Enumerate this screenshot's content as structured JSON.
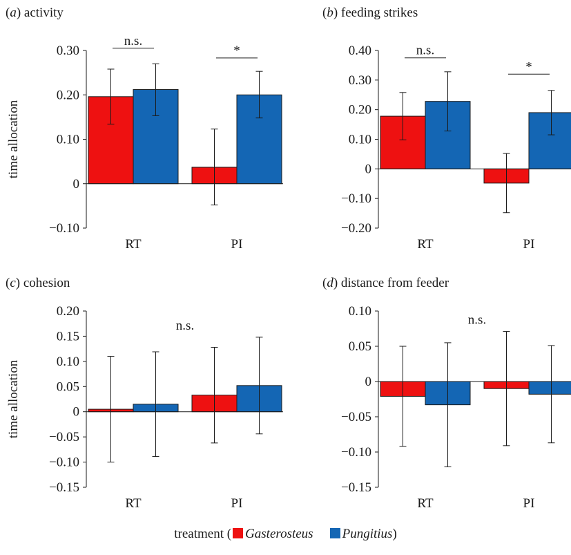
{
  "colors": {
    "gasterosteus": "#ee1111",
    "pungitius": "#1466b4",
    "axis": "#1a1a1a"
  },
  "legend": {
    "prefix": "treatment (",
    "series": [
      "Gasterosteus",
      "Pungitius"
    ],
    "suffix": ")"
  },
  "chart_data": [
    {
      "type": "bar",
      "panel_letter": "a",
      "title": "activity",
      "ylabel": "time allocation",
      "categories": [
        "RT",
        "PI"
      ],
      "ylim": [
        -0.1,
        0.3
      ],
      "yticks": [
        -0.1,
        0,
        0.1,
        0.2,
        0.3
      ],
      "ytick_labels": [
        "−0.10",
        "0",
        "0.10",
        "0.20",
        "0.30"
      ],
      "series": [
        {
          "name": "Gasterosteus",
          "values": [
            0.196,
            0.037
          ],
          "err_low": [
            0.134,
            -0.048
          ],
          "err_high": [
            0.258,
            0.123
          ]
        },
        {
          "name": "Pungitius",
          "values": [
            0.212,
            0.2
          ],
          "err_low": [
            0.153,
            0.148
          ],
          "err_high": [
            0.27,
            0.253
          ]
        }
      ],
      "annotations": [
        {
          "text": "n.s.",
          "category": 0,
          "bracket": true,
          "y": 0.305
        },
        {
          "text": "*",
          "category": 1,
          "bracket": true,
          "y": 0.283
        }
      ]
    },
    {
      "type": "bar",
      "panel_letter": "b",
      "title": "feeding strikes",
      "ylabel": "",
      "categories": [
        "RT",
        "PI"
      ],
      "ylim": [
        -0.2,
        0.4
      ],
      "yticks": [
        -0.2,
        -0.1,
        0,
        0.1,
        0.2,
        0.3,
        0.4
      ],
      "ytick_labels": [
        "−0.20",
        "−0.10",
        "0",
        "0.10",
        "0.20",
        "0.30",
        "0.40"
      ],
      "series": [
        {
          "name": "Gasterosteus",
          "values": [
            0.178,
            -0.048
          ],
          "err_low": [
            0.098,
            -0.148
          ],
          "err_high": [
            0.258,
            0.052
          ]
        },
        {
          "name": "Pungitius",
          "values": [
            0.228,
            0.19
          ],
          "err_low": [
            0.128,
            0.115
          ],
          "err_high": [
            0.328,
            0.265
          ]
        }
      ],
      "annotations": [
        {
          "text": "n.s.",
          "category": 0,
          "bracket": true,
          "y": 0.375
        },
        {
          "text": "*",
          "category": 1,
          "bracket": true,
          "y": 0.32
        }
      ]
    },
    {
      "type": "bar",
      "panel_letter": "c",
      "title": "cohesion",
      "ylabel": "time allocation",
      "categories": [
        "RT",
        "PI"
      ],
      "ylim": [
        -0.15,
        0.2
      ],
      "yticks": [
        -0.15,
        -0.1,
        -0.05,
        0,
        0.05,
        0.1,
        0.15,
        0.2
      ],
      "ytick_labels": [
        "−0.15",
        "−0.10",
        "−0.05",
        "0",
        "0.05",
        "0.10",
        "0.15",
        "0.20"
      ],
      "series": [
        {
          "name": "Gasterosteus",
          "values": [
            0.005,
            0.033
          ],
          "err_low": [
            -0.1,
            -0.062
          ],
          "err_high": [
            0.11,
            0.128
          ]
        },
        {
          "name": "Pungitius",
          "values": [
            0.015,
            0.052
          ],
          "err_low": [
            -0.089,
            -0.044
          ],
          "err_high": [
            0.119,
            0.148
          ]
        }
      ],
      "annotations": [
        {
          "text": "n.s.",
          "category": 0.5,
          "bracket": false,
          "y": 0.163
        }
      ]
    },
    {
      "type": "bar",
      "panel_letter": "d",
      "title": "distance from feeder",
      "ylabel": "",
      "categories": [
        "RT",
        "PI"
      ],
      "ylim": [
        -0.15,
        0.1
      ],
      "yticks": [
        -0.15,
        -0.1,
        -0.05,
        0,
        0.05,
        0.1
      ],
      "ytick_labels": [
        "−0.15",
        "−0.10",
        "−0.05",
        "0",
        "0.05",
        "0.10"
      ],
      "series": [
        {
          "name": "Gasterosteus",
          "values": [
            -0.021,
            -0.01
          ],
          "err_low": [
            -0.092,
            -0.091
          ],
          "err_high": [
            0.05,
            0.071
          ]
        },
        {
          "name": "Pungitius",
          "values": [
            -0.033,
            -0.018
          ],
          "err_low": [
            -0.121,
            -0.087
          ],
          "err_high": [
            0.055,
            0.051
          ]
        }
      ],
      "annotations": [
        {
          "text": "n.s.",
          "category": 0.5,
          "bracket": false,
          "y": 0.082
        }
      ]
    }
  ]
}
